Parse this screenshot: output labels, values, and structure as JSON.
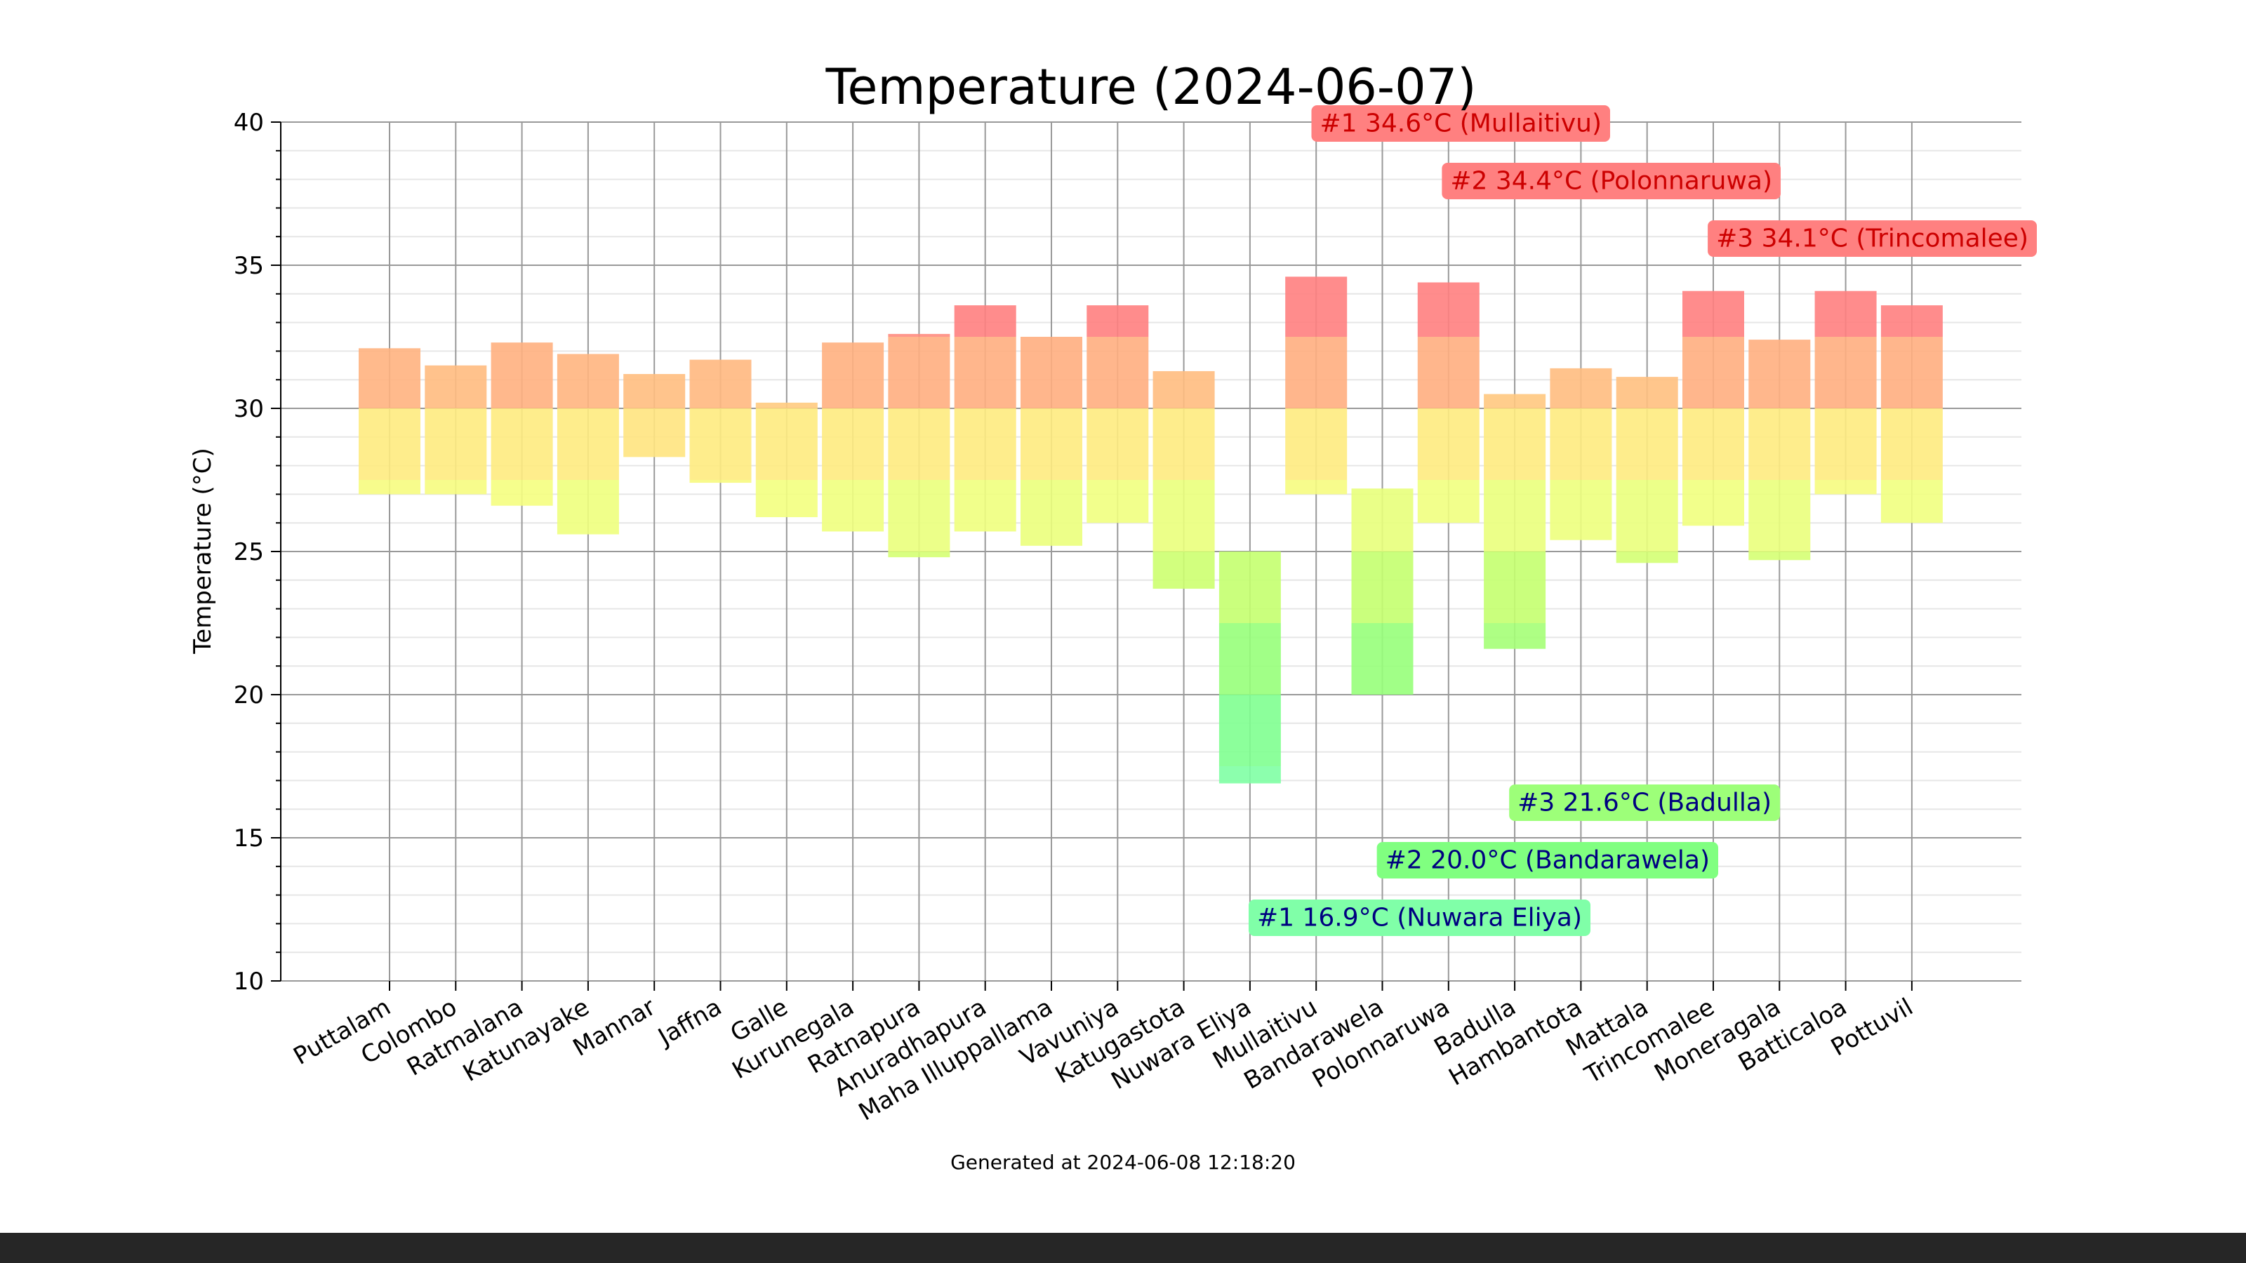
{
  "chart_data": {
    "type": "bar",
    "title": "Temperature (2024-06-07)",
    "xlabel": "",
    "ylabel": "Temperature (°C)",
    "ylim": [
      10,
      40
    ],
    "yticks": [
      10,
      15,
      20,
      25,
      30,
      35,
      40
    ],
    "grid": true,
    "footer": "Generated at 2024-06-08 12:18:20",
    "categories": [
      "Puttalam",
      "Colombo",
      "Ratmalana",
      "Katunayake",
      "Mannar",
      "Jaffna",
      "Galle",
      "Kurunegala",
      "Ratnapura",
      "Anuradhapura",
      "Maha Illuppallama",
      "Vavuniya",
      "Katugastota",
      "Nuwara Eliya",
      "Mullaitivu",
      "Bandarawela",
      "Polonnaruwa",
      "Badulla",
      "Hambantota",
      "Mattala",
      "Trincomalee",
      "Moneragala",
      "Batticaloa",
      "Pottuvil"
    ],
    "min": [
      27.0,
      27.0,
      26.6,
      25.6,
      28.3,
      27.4,
      26.2,
      25.7,
      24.8,
      25.7,
      25.2,
      26.0,
      23.7,
      16.9,
      27.0,
      20.0,
      26.0,
      21.6,
      25.4,
      24.6,
      25.9,
      24.7,
      27.0,
      26.0
    ],
    "max": [
      32.1,
      31.5,
      32.3,
      31.9,
      31.2,
      31.7,
      30.2,
      32.3,
      32.6,
      33.6,
      32.5,
      33.6,
      31.3,
      25.0,
      34.6,
      27.2,
      34.4,
      30.5,
      31.4,
      31.1,
      34.1,
      32.4,
      34.1,
      33.6
    ],
    "annotations": {
      "highest": [
        {
          "text": "#1 34.6°C (Mullaitivu)",
          "value": 34.6,
          "station": "Mullaitivu"
        },
        {
          "text": "#2 34.4°C (Polonnaruwa)",
          "value": 34.4,
          "station": "Polonnaruwa"
        },
        {
          "text": "#3 34.1°C (Trincomalee)",
          "value": 34.1,
          "station": "Trincomalee"
        }
      ],
      "lowest": [
        {
          "text": "#3 21.6°C (Badulla)",
          "value": 21.6,
          "station": "Badulla"
        },
        {
          "text": "#2 20.0°C (Bandarawela)",
          "value": 20.0,
          "station": "Bandarawela"
        },
        {
          "text": "#1 16.9°C (Nuwara Eliya)",
          "value": 16.9,
          "station": "Nuwara Eliya"
        }
      ]
    }
  },
  "colors": {
    "hot_badge_bg": "#ff8080",
    "hot_badge_text": "#cc0000",
    "cold_badge_text": "#000080",
    "grid_major": "#999999",
    "grid_minor": "#e6e6e6",
    "footer_bar": "#262626"
  }
}
